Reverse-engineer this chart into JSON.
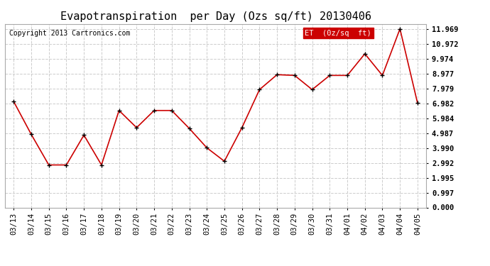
{
  "title": "Evapotranspiration  per Day (Ozs sq/ft) 20130406",
  "copyright": "Copyright 2013 Cartronics.com",
  "legend_label": "ET  (0z/sq  ft)",
  "x_labels": [
    "03/13",
    "03/14",
    "03/15",
    "03/16",
    "03/17",
    "03/18",
    "03/19",
    "03/20",
    "03/21",
    "03/22",
    "03/23",
    "03/24",
    "03/25",
    "03/26",
    "03/27",
    "03/28",
    "03/29",
    "03/30",
    "03/31",
    "04/01",
    "04/02",
    "04/03",
    "04/04",
    "04/05"
  ],
  "y_values": [
    7.1,
    4.9,
    2.85,
    2.85,
    4.85,
    2.85,
    6.5,
    5.35,
    6.5,
    6.5,
    5.3,
    4.0,
    3.1,
    5.35,
    7.9,
    8.9,
    8.85,
    7.9,
    8.85,
    8.85,
    10.3,
    8.85,
    11.97,
    7.0
  ],
  "y_ticks": [
    0.0,
    0.997,
    1.995,
    2.992,
    3.99,
    4.987,
    5.984,
    6.982,
    7.979,
    8.977,
    9.974,
    10.972,
    11.969
  ],
  "y_tick_labels": [
    "0.000",
    "0.997",
    "1.995",
    "2.992",
    "3.990",
    "4.987",
    "5.984",
    "6.982",
    "7.979",
    "8.977",
    "9.974",
    "10.972",
    "11.969"
  ],
  "ylim": [
    0.0,
    12.3
  ],
  "line_color": "#cc0000",
  "marker_color": "#000000",
  "background_color": "#ffffff",
  "grid_color": "#cccccc",
  "title_fontsize": 11,
  "axis_fontsize": 7.5,
  "copyright_fontsize": 7,
  "legend_fontsize": 7.5,
  "legend_bg": "#cc0000",
  "legend_text_color": "#ffffff"
}
